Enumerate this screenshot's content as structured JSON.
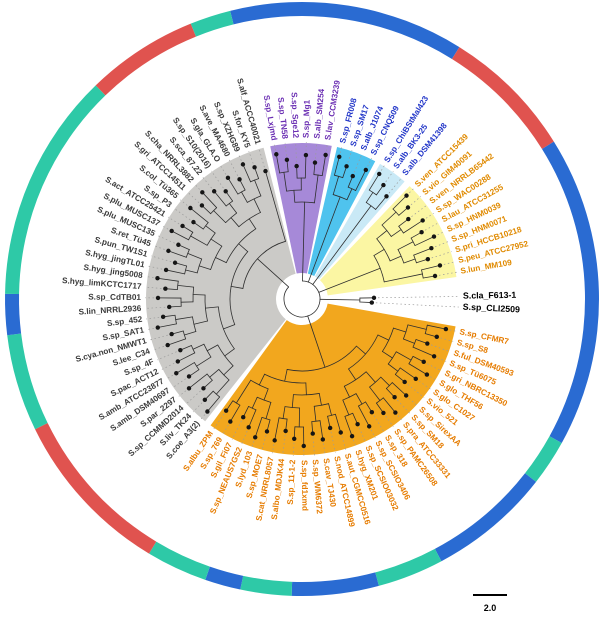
{
  "figure": {
    "description": "Circular phylogenetic tree of Streptomyces strains with colored clade wedges and outer color ring",
    "scale_bar": {
      "label": "2.0"
    }
  },
  "chart_data": {
    "type": "circular_phylogenetic_tree",
    "start_angle_deg": -14,
    "outer_ring": {
      "colors": {
        "teal": "#2ec9a7",
        "blue": "#2a6bd2",
        "red": "#e0534f"
      },
      "segments": [
        {
          "from": -14,
          "to": 32,
          "color": "blue"
        },
        {
          "from": 32,
          "to": 58,
          "color": "red"
        },
        {
          "from": 58,
          "to": 119,
          "color": "blue"
        },
        {
          "from": 119,
          "to": 128,
          "color": "teal"
        },
        {
          "from": 128,
          "to": 152,
          "color": "blue"
        },
        {
          "from": 152,
          "to": 165,
          "color": "teal"
        },
        {
          "from": 165,
          "to": 182,
          "color": "blue"
        },
        {
          "from": 182,
          "to": 192,
          "color": "teal"
        },
        {
          "from": 192,
          "to": 199,
          "color": "blue"
        },
        {
          "from": 199,
          "to": 211,
          "color": "teal"
        },
        {
          "from": 211,
          "to": 244,
          "color": "red"
        },
        {
          "from": 244,
          "to": 263,
          "color": "teal"
        },
        {
          "from": 263,
          "to": 271,
          "color": "blue"
        },
        {
          "from": 271,
          "to": 316,
          "color": "teal"
        },
        {
          "from": 316,
          "to": 338,
          "color": "red"
        },
        {
          "from": 338,
          "to": 346,
          "color": "teal"
        }
      ]
    },
    "clades": [
      {
        "id": "purple",
        "pre_gap_deg": 2,
        "wedge_color": "#a689d8",
        "label_color": "#6b2fb3",
        "taxa": [
          "S.sp_Lxjmd",
          "S.sp_TN58",
          "S.sp_Sge12",
          "S.sp_Mg1",
          "S.alb_SM254",
          "S.lav_CCM3239"
        ]
      },
      {
        "id": "blue",
        "pre_gap_deg": 1.5,
        "wedge_color": "#4fc3ee",
        "label_color": "#2236c8",
        "taxa": [
          "S.sp_FR008",
          "S.sp_SM17",
          "S.alb_J1074",
          "S.sp_CNQ509"
        ]
      },
      {
        "id": "lightblue",
        "pre_gap_deg": 1.5,
        "wedge_color": "#c9e9f6",
        "label_color": "#2236c8",
        "taxa": [
          "S.sp_ChiBStMal423",
          "S.alb_BK3-25",
          "S.alb_DSM41398"
        ]
      },
      {
        "id": "yellow",
        "pre_gap_deg": 2,
        "wedge_color": "#fbf6a3",
        "label_color": "#e08a00",
        "taxa": [
          "S.ven_ATCC15439",
          "S.vio_GIM40091",
          "S.ven_NRRLB65442",
          "S.sp_WAC00288",
          "S.lau_ATCC31255",
          "S.sp_HNM0039",
          "S.sp_HNM0071",
          "S.pri_HCCB10218",
          "S.peu_ATCC27952",
          "S.lun_MM109"
        ]
      },
      {
        "id": "black",
        "pre_gap_deg": 5,
        "wedge_color": "none",
        "label_color": "#000000",
        "font_size": 8.8,
        "tip_radius": 72,
        "taxa": [
          "S.cla_F613-1",
          "S.sp_CLI2509"
        ]
      },
      {
        "id": "orange",
        "pre_gap_deg": 5,
        "wedge_color": "#f2a71e",
        "label_color": "#e67c00",
        "taxa": [
          "S.sp_CFMR7",
          "S.sp_S8",
          "S.ful_DSM40593",
          "S.sp_Tü6075",
          "S.gri_NBRC13350",
          "S.glo_THF56",
          "S.glo_C1027",
          "S.vio_521",
          "S.sp_SirexAA",
          "S.sp_SM18",
          "S.pra_ATCC33331",
          "S.sp_PAMC26508",
          "S.sp_318",
          "S.sp_SCSIO3406",
          "S.sp_SCSIO03032",
          "S.hyg_XM201",
          "S.aut_CGMCC0516",
          "S.nod_ATCC14899",
          "S.cav_TJ430",
          "S.sp_WM6372",
          "S.sp_fd1xmd",
          "S.sp_11-1-2",
          "S.albo_MDJK44",
          "S.cat_NRRL8057",
          "S.sp_MOE7",
          "S.lyd_103",
          "S.sp_NEAUS7GS2",
          "S.gil_Fi07",
          "S.sp_769",
          "S.albu_ZPM"
        ]
      },
      {
        "id": "gray",
        "pre_gap_deg": 2,
        "wedge_color": "#cbcac7",
        "label_color": "#3b3b3b",
        "taxa": [
          "S.coe_A3(2)",
          "S.liv_TK24",
          "S.sp_CCMMD2014",
          "S.par_2297",
          "S.amb_DSM40697",
          "S.amb_ATCC23877",
          "S.pac_ACT12",
          "S.sp_4F",
          "S.lee_C34",
          "S.cya.non_NMWT1",
          "S.sp_SAT1",
          "S.sp_452",
          "S.lin_NRRL2936",
          "S.sp_CdTB01",
          "S.hyg_limKCTC1717",
          "S.hyg_jing5008",
          "S.hyg_jingTL01",
          "S.pun_TW1S1",
          "S.ret_Tü45",
          "S.plu_MUSC135",
          "S.plu_MUSC137",
          "S.act_ATCC25421",
          "S.sp_P3",
          "S.col_Tü365",
          "S.gri_ATCC14511",
          "S.cha_NRRL3882",
          "S.sca_87.22",
          "S.sp_S10(2016)",
          "S.gla_GLA.O",
          "S.ave_MA4680",
          "S.sp_XZHG89",
          "S.for_KY5",
          "S.alf_ACCC40021"
        ]
      }
    ],
    "scale_bar": {
      "label": "2.0"
    }
  }
}
